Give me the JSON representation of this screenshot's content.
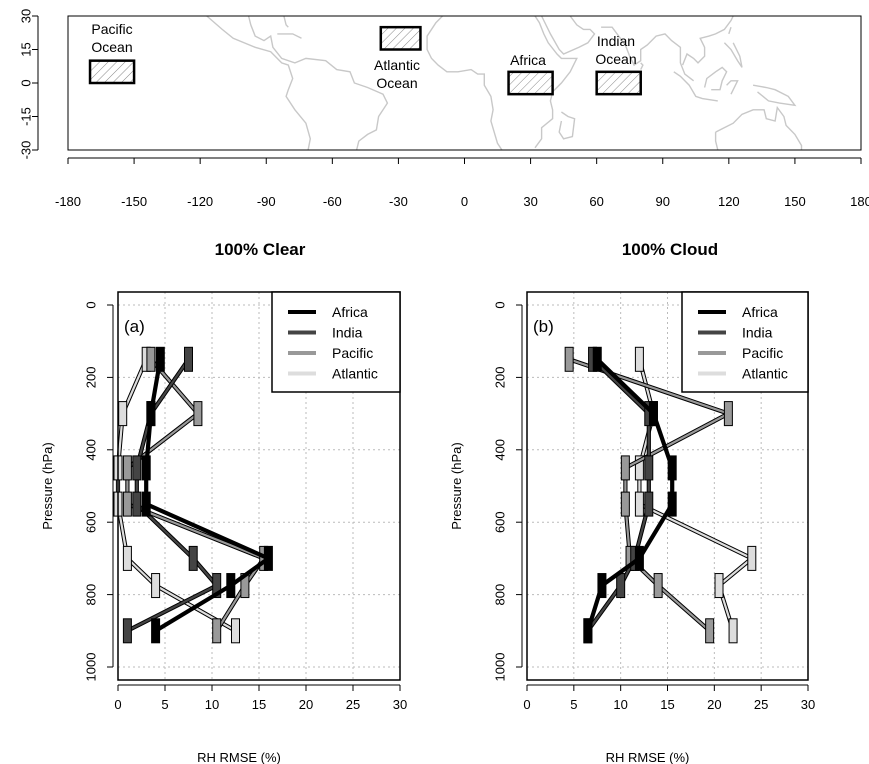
{
  "map": {
    "x_ticks": [
      "-180",
      "-150",
      "-120",
      "-90",
      "-60",
      "-30",
      "0",
      "30",
      "60",
      "90",
      "120",
      "150",
      "180"
    ],
    "y_ticks": [
      "30",
      "15",
      "0",
      "-15",
      "-30"
    ],
    "regions": [
      {
        "name": "Pacific Ocean",
        "label_lines": [
          "Pacific",
          "Ocean"
        ],
        "lon": [
          -170,
          -150
        ],
        "lat": [
          0,
          10
        ]
      },
      {
        "name": "Atlantic Ocean",
        "label_lines": [
          "Atlantic",
          "Ocean"
        ],
        "lon": [
          -38,
          -20
        ],
        "lat": [
          15,
          25
        ]
      },
      {
        "name": "Africa",
        "label_lines": [
          "Africa"
        ],
        "lon": [
          20,
          40
        ],
        "lat": [
          -5,
          5
        ]
      },
      {
        "name": "Indian Ocean",
        "label_lines": [
          "Indian",
          "Ocean"
        ],
        "lon": [
          60,
          80
        ],
        "lat": [
          -5,
          5
        ]
      }
    ]
  },
  "chart_data": [
    {
      "type": "line",
      "panel_label": "(a)",
      "title": "100% Clear",
      "xlabel": "RH RMSE (%)",
      "ylabel": "Pressure (hPa)",
      "xlim": [
        0,
        30
      ],
      "ylim": [
        1000,
        0
      ],
      "x_ticks": [
        "0",
        "5",
        "10",
        "15",
        "20",
        "25",
        "30"
      ],
      "y_ticks": [
        "0",
        "200",
        "400",
        "600",
        "800",
        "1000"
      ],
      "grid": true,
      "legend_position": "top-right",
      "pressure_levels": [
        150,
        300,
        450,
        550,
        700,
        775,
        900
      ],
      "series": [
        {
          "name": "Africa",
          "color": "#000000",
          "values": [
            4.5,
            3.5,
            3.0,
            3.0,
            16.0,
            12.0,
            4.0
          ]
        },
        {
          "name": "India",
          "color": "#444444",
          "values": [
            7.5,
            3.5,
            2.0,
            2.0,
            8.0,
            10.5,
            1.0
          ]
        },
        {
          "name": "Pacific",
          "color": "#999999",
          "values": [
            3.5,
            8.5,
            1.0,
            1.0,
            15.5,
            13.5,
            10.5
          ]
        },
        {
          "name": "Atlantic",
          "color": "#dddddd",
          "values": [
            3.0,
            0.5,
            0.0,
            0.0,
            1.0,
            4.0,
            12.5
          ]
        }
      ]
    },
    {
      "type": "line",
      "panel_label": "(b)",
      "title": "100% Cloud",
      "xlabel": "RH RMSE (%)",
      "ylabel": "Pressure (hPa)",
      "xlim": [
        0,
        30
      ],
      "ylim": [
        1000,
        0
      ],
      "x_ticks": [
        "0",
        "5",
        "10",
        "15",
        "20",
        "25",
        "30"
      ],
      "y_ticks": [
        "0",
        "200",
        "400",
        "600",
        "800",
        "1000"
      ],
      "grid": true,
      "legend_position": "top-right",
      "pressure_levels": [
        150,
        300,
        450,
        550,
        700,
        775,
        900
      ],
      "series": [
        {
          "name": "Africa",
          "color": "#000000",
          "values": [
            7.5,
            13.5,
            15.5,
            15.5,
            12.0,
            8.0,
            6.5
          ]
        },
        {
          "name": "India",
          "color": "#444444",
          "values": [
            7.0,
            13.0,
            13.0,
            13.0,
            11.5,
            10.0,
            6.5
          ]
        },
        {
          "name": "Pacific",
          "color": "#999999",
          "values": [
            4.5,
            21.5,
            10.5,
            10.5,
            11.0,
            14.0,
            19.5
          ]
        },
        {
          "name": "Atlantic",
          "color": "#dddddd",
          "values": [
            12.0,
            13.5,
            12.0,
            12.0,
            24.0,
            20.5,
            22.0
          ]
        }
      ]
    }
  ]
}
